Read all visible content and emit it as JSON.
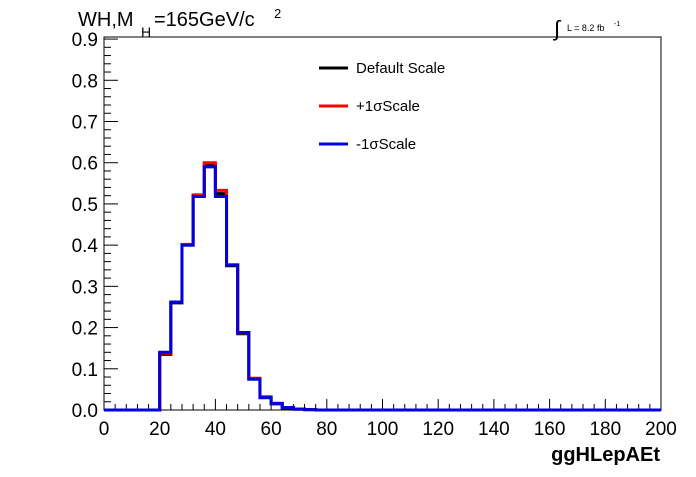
{
  "chart_data": {
    "type": "line",
    "title_main": "WH,M",
    "title_sub": "H",
    "title_rest": "=165GeV/c",
    "title_sup": "2",
    "lumi_label": "L = 8.2 fb",
    "lumi_sup": "-1",
    "xlabel": "ggHLepAEt",
    "ylabel": "",
    "xlim": [
      0,
      200
    ],
    "ylim": [
      0,
      0.9
    ],
    "x_ticks": [
      "0",
      "20",
      "40",
      "60",
      "80",
      "100",
      "120",
      "140",
      "160",
      "180",
      "200"
    ],
    "y_ticks": [
      "0.0",
      "0.1",
      "0.2",
      "0.3",
      "0.4",
      "0.5",
      "0.6",
      "0.7",
      "0.8",
      "0.9"
    ],
    "legend_position": "top-right",
    "bin_edges": [
      0,
      4,
      8,
      12,
      16,
      20,
      24,
      28,
      32,
      36,
      40,
      44,
      48,
      52,
      56,
      60,
      64,
      68,
      72,
      76,
      80,
      84,
      88,
      92,
      96,
      100,
      104,
      108,
      112,
      116,
      120,
      124,
      128,
      132,
      136,
      140,
      144,
      148,
      152,
      156,
      160,
      164,
      168,
      172,
      176,
      180,
      184,
      188,
      192,
      196,
      200
    ],
    "series": [
      {
        "name": "Default Scale",
        "color": "#000000",
        "values": [
          0,
          0,
          0,
          0,
          0,
          0.135,
          0.26,
          0.4,
          0.52,
          0.595,
          0.525,
          0.35,
          0.185,
          0.075,
          0.03,
          0.015,
          0.005,
          0.002,
          0.001,
          0,
          0,
          0,
          0,
          0,
          0,
          0,
          0,
          0,
          0,
          0,
          0,
          0,
          0,
          0,
          0,
          0,
          0,
          0,
          0,
          0,
          0,
          0,
          0,
          0,
          0,
          0,
          0,
          0,
          0,
          0
        ]
      },
      {
        "name": "+1σScale",
        "color": "#ff0000",
        "values": [
          0,
          0,
          0,
          0,
          0,
          0.138,
          0.262,
          0.402,
          0.522,
          0.6,
          0.533,
          0.352,
          0.187,
          0.077,
          0.032,
          0.016,
          0.006,
          0.002,
          0.001,
          0,
          0,
          0,
          0,
          0,
          0,
          0,
          0,
          0,
          0,
          0,
          0,
          0,
          0,
          0,
          0,
          0,
          0,
          0,
          0,
          0,
          0,
          0,
          0,
          0,
          0,
          0,
          0,
          0,
          0,
          0
        ]
      },
      {
        "name": "-1σScale",
        "color": "#0000e0",
        "values": [
          0,
          0,
          0,
          0,
          0,
          0.14,
          0.262,
          0.4,
          0.518,
          0.59,
          0.518,
          0.352,
          0.188,
          0.075,
          0.03,
          0.016,
          0.006,
          0.002,
          0.001,
          0,
          0,
          0,
          0,
          0,
          0,
          0,
          0,
          0,
          0,
          0,
          0,
          0,
          0,
          0,
          0,
          0,
          0,
          0,
          0,
          0,
          0,
          0,
          0,
          0,
          0,
          0,
          0,
          0,
          0,
          0
        ]
      }
    ]
  }
}
